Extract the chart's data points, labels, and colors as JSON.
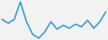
{
  "values": [
    5.0,
    4.2,
    5.0,
    8.5,
    4.5,
    2.0,
    1.2,
    2.5,
    4.5,
    3.0,
    3.8,
    3.2,
    4.0,
    3.5,
    4.8,
    3.2,
    4.5,
    6.5
  ],
  "line_color": "#3a9fd5",
  "background_color": "#f2f2f2",
  "linewidth": 1.2
}
